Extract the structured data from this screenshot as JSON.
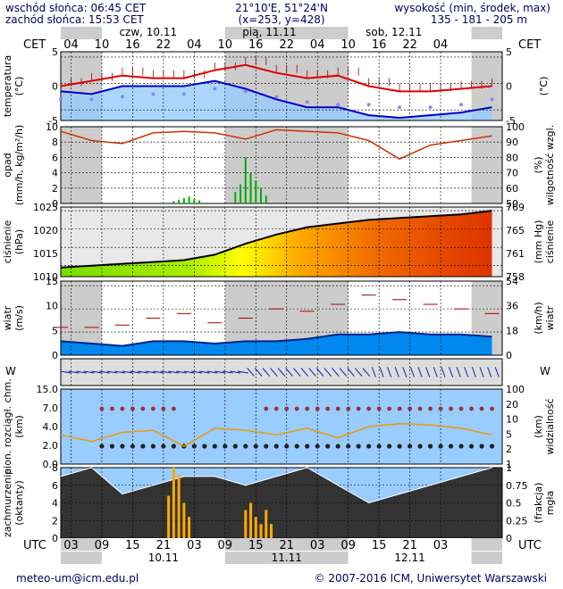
{
  "header": {
    "sunrise": "wschód słońca: 06:45 CET",
    "sunset": "zachód słońca: 15:53 CET",
    "coords": "21°10'E, 51°24'N",
    "grid": "(x=253, y=428)",
    "elevation_label": "wysokość (min, środek, max)",
    "elevation_values": "135 - 181 - 205 m"
  },
  "top_axis": {
    "unit": "CET",
    "hours": [
      "04",
      "10",
      "16",
      "22",
      "04",
      "10",
      "16",
      "22",
      "04",
      "10",
      "16",
      "22",
      "04"
    ],
    "days": [
      "czw, 10.11",
      "pią, 11.11",
      "sob, 12.11"
    ]
  },
  "bottom_axis": {
    "unit": "UTC",
    "hours": [
      "03",
      "09",
      "15",
      "21",
      "03",
      "09",
      "15",
      "21",
      "03",
      "09",
      "15",
      "21",
      "03"
    ],
    "dates": [
      "10.11",
      "11.11",
      "12.11"
    ]
  },
  "footer": {
    "email": "meteo-um@icm.edu.pl",
    "copyright": "© 2007-2016 ICM, Uniwersytet Warszawski"
  },
  "colors": {
    "temp_max": "#dd0000",
    "temp_min": "#0000cc",
    "dewpoint": "#8888ff",
    "precip_rain": "#00aa00",
    "humidity": "#cc3300",
    "wind_fill": "#0088ee",
    "gust": "#aa0000",
    "visibility": "#ee9900",
    "fog": "#ffaa00",
    "panel_bg": "#cccccc",
    "sky_blue": "#99ccff"
  },
  "chart_data": [
    {
      "type": "line",
      "panel": "temperature",
      "ylabel": "temperatura (°C)",
      "ylabel_right": "(°C)",
      "yticks": [
        "5",
        "0",
        "-5"
      ],
      "ylim": [
        -7,
        6
      ],
      "x_hours": [
        0,
        6,
        12,
        18,
        24,
        30,
        36,
        42,
        48,
        54,
        60,
        66,
        72,
        78,
        84
      ],
      "series": [
        {
          "values": [
            -0.5,
            0.5,
            1.5,
            1.0,
            1.0,
            2.5,
            3.5,
            2.0,
            1.0,
            1.5,
            -0.5,
            -1.5,
            -1.5,
            -1.0,
            -0.5
          ]
        },
        {
          "values": [
            -1.5,
            -2.0,
            -0.5,
            -0.5,
            -0.5,
            0.5,
            -1.0,
            -3.0,
            -4.5,
            -4.5,
            -6.0,
            -6.5,
            -6.0,
            -5.5,
            -4.5
          ]
        },
        {
          "values": [
            -3.0,
            -3.0,
            -2.5,
            -2.0,
            -2.0,
            -1.0,
            -1.5,
            -2.5,
            -3.5,
            -4.0,
            -4.0,
            -4.5,
            -4.5,
            -4.0,
            -3.0
          ]
        }
      ]
    },
    {
      "type": "bar",
      "panel": "precipitation",
      "ylabel": "opad (mm/h, kg/m²/h)",
      "ylabel_right": "wilgotność wzgl. (%)",
      "yticks": [
        "10",
        "8",
        "6",
        "4",
        "2",
        "0"
      ],
      "yticks_right": [
        "100",
        "90",
        "80",
        "70",
        "60",
        "50"
      ],
      "ylim": [
        0,
        10
      ],
      "x_hours": [
        22,
        23,
        24,
        25,
        26,
        27,
        34,
        35,
        36,
        37,
        38,
        39,
        40
      ],
      "values": [
        0.3,
        0.5,
        0.7,
        0.9,
        0.6,
        0.4,
        1.5,
        2.5,
        6.0,
        4.0,
        3.0,
        2.0,
        1.0
      ],
      "humidity_x": [
        0,
        6,
        12,
        18,
        24,
        30,
        36,
        42,
        48,
        54,
        60,
        66,
        72,
        78,
        84
      ],
      "humidity": [
        97,
        91,
        89,
        96,
        97,
        96,
        92,
        98,
        97,
        96,
        91,
        79,
        88,
        91,
        94
      ]
    },
    {
      "type": "area",
      "panel": "pressure",
      "ylabel": "ciśnienie (hPa)",
      "ylabel_right": "(mm Hg) ciśnienie",
      "yticks": [
        "1025",
        "1020",
        "1015",
        "1010"
      ],
      "yticks_right": [
        "769",
        "765",
        "761",
        "758"
      ],
      "ylim": [
        1007,
        1026
      ],
      "x_hours": [
        0,
        6,
        12,
        18,
        24,
        30,
        36,
        42,
        48,
        54,
        60,
        66,
        72,
        78,
        84
      ],
      "values": [
        1009.5,
        1010,
        1010.5,
        1011,
        1011.5,
        1013,
        1016,
        1018.5,
        1020.5,
        1021.5,
        1022.5,
        1023,
        1023.5,
        1024,
        1025
      ]
    },
    {
      "type": "area",
      "panel": "wind",
      "ylabel": "wiatr (m/s)",
      "ylabel_right": "(km/h) wiatr",
      "yticks": [
        "15",
        "10",
        "5",
        "0"
      ],
      "yticks_right": [
        "54",
        "36",
        "18",
        "0"
      ],
      "ylim": [
        0,
        16
      ],
      "x_hours": [
        0,
        6,
        12,
        18,
        24,
        30,
        36,
        42,
        48,
        54,
        60,
        66,
        72,
        78,
        84
      ],
      "series": [
        {
          "values": [
            3,
            2.5,
            2,
            3,
            3,
            2.5,
            3,
            3,
            3.5,
            4.5,
            4.5,
            5,
            4.5,
            4.5,
            4
          ]
        },
        {
          "values": [
            6,
            6,
            6.5,
            8,
            9,
            7,
            8,
            10,
            9.5,
            11,
            13,
            12,
            11,
            10,
            9
          ]
        }
      ]
    },
    {
      "type": "line",
      "panel": "clouds_visibility",
      "ylabel": "pion. rozciągł. chm. (km)",
      "ylabel_right": "(km) widzialność",
      "yticks": [
        "15.0",
        "7.0",
        "4.0",
        "2.0",
        "0.0"
      ],
      "yticks_right": [
        "100",
        "20",
        "10",
        "5",
        "2",
        "1"
      ],
      "x_hours": [
        0,
        6,
        12,
        18,
        24,
        30,
        36,
        42,
        48,
        54,
        60,
        66,
        72,
        78,
        84
      ],
      "visibility": [
        6,
        4,
        7,
        8,
        3,
        9,
        8,
        6,
        9,
        5,
        10,
        12,
        11,
        9,
        6
      ]
    },
    {
      "type": "area",
      "panel": "cloudiness",
      "ylabel": "zachmurzenie (oktanty)",
      "ylabel_right": "(frakcja) mgła",
      "yticks": [
        "8",
        "6",
        "4",
        "2",
        "0"
      ],
      "yticks_right": [
        "1",
        "0.75",
        "0.5",
        "0.25",
        "0"
      ],
      "ylim": [
        0,
        8
      ],
      "x_hours": [
        0,
        6,
        12,
        18,
        24,
        30,
        36,
        42,
        48,
        54,
        60,
        66,
        72,
        78,
        84
      ],
      "cloud": [
        7,
        8,
        5,
        6,
        7,
        7,
        6,
        7,
        8,
        6,
        4,
        5,
        6,
        7,
        8
      ],
      "fog_x": [
        21,
        22,
        23,
        24,
        25,
        36,
        37,
        38,
        39,
        40,
        41
      ],
      "fog": [
        0.6,
        1.0,
        0.9,
        0.5,
        0.3,
        0.4,
        0.5,
        0.3,
        0.2,
        0.4,
        0.2
      ]
    }
  ]
}
